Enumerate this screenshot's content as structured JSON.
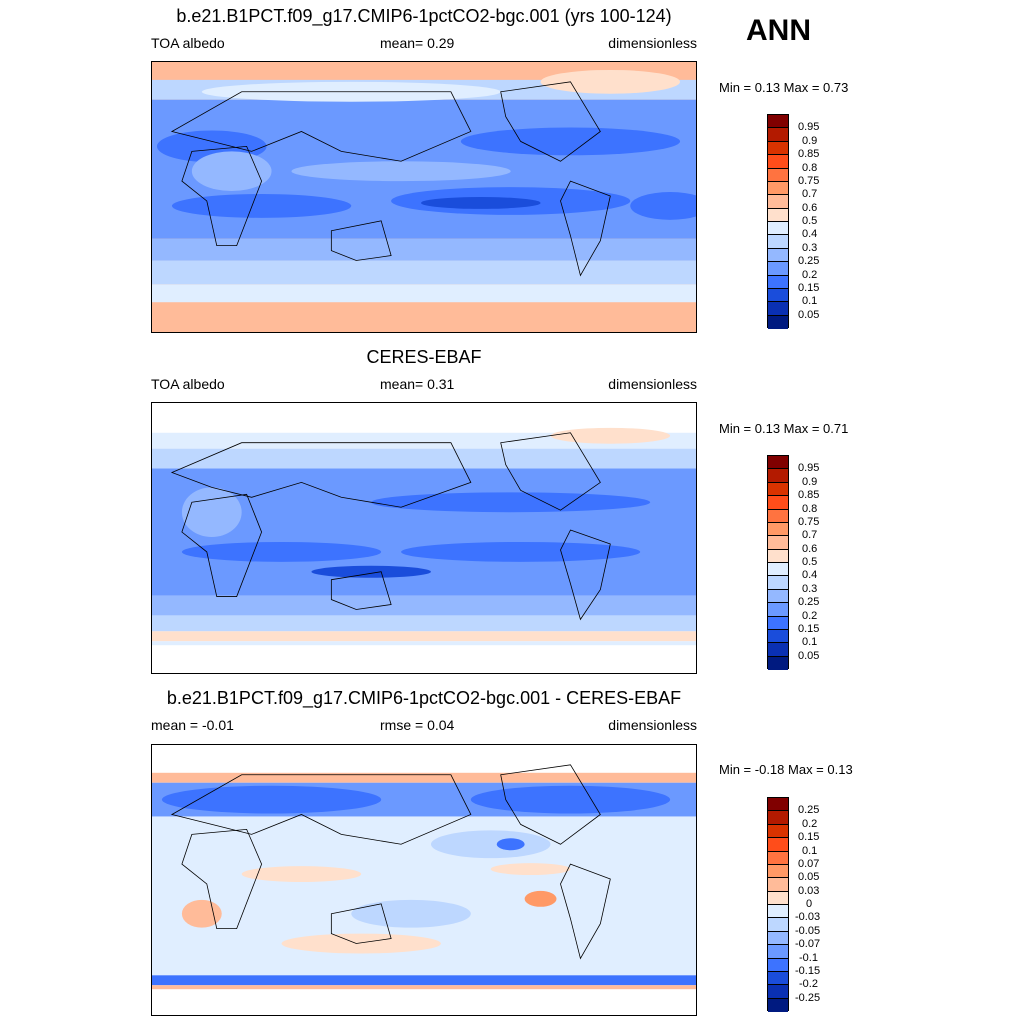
{
  "season": "ANN",
  "panels": [
    {
      "title": "b.e21.B1PCT.f09_g17.CMIP6-1pctCO2-bgc.001 (yrs 100-124)",
      "left_text": "TOA albedo",
      "center_text": "mean=   0.29",
      "right_text": "dimensionless",
      "minmax": "Min =   0.13 Max =   0.73",
      "colorbar": {
        "labels": [
          "0.95",
          "0.9",
          "0.85",
          "0.8",
          "0.75",
          "0.7",
          "0.6",
          "0.5",
          "0.4",
          "0.3",
          "0.25",
          "0.2",
          "0.15",
          "0.1",
          "0.05"
        ],
        "colors": [
          "#800000",
          "#b31a00",
          "#d93300",
          "#ff4d1a",
          "#ff7340",
          "#ff9966",
          "#ffbb99",
          "#ffe0cc",
          "#e0eeff",
          "#bdd7ff",
          "#94b8ff",
          "#6b99ff",
          "#3d73ff",
          "#1a4ddb",
          "#0a30b3",
          "#001a80"
        ]
      }
    },
    {
      "title": "CERES-EBAF",
      "left_text": "TOA albedo",
      "center_text": "mean=   0.31",
      "right_text": "dimensionless",
      "minmax": "Min =   0.13 Max =   0.71",
      "colorbar": {
        "labels": [
          "0.95",
          "0.9",
          "0.85",
          "0.8",
          "0.75",
          "0.7",
          "0.6",
          "0.5",
          "0.4",
          "0.3",
          "0.25",
          "0.2",
          "0.15",
          "0.1",
          "0.05"
        ],
        "colors": [
          "#800000",
          "#b31a00",
          "#d93300",
          "#ff4d1a",
          "#ff7340",
          "#ff9966",
          "#ffbb99",
          "#ffe0cc",
          "#e0eeff",
          "#bdd7ff",
          "#94b8ff",
          "#6b99ff",
          "#3d73ff",
          "#1a4ddb",
          "#0a30b3",
          "#001a80"
        ]
      }
    },
    {
      "title": "b.e21.B1PCT.f09_g17.CMIP6-1pctCO2-bgc.001 - CERES-EBAF",
      "left_text": "mean =  -0.01",
      "center_text": "rmse =   0.04",
      "right_text": "dimensionless",
      "minmax": "Min =  -0.18 Max =   0.13",
      "colorbar": {
        "labels": [
          "0.25",
          "0.2",
          "0.15",
          "0.1",
          "0.07",
          "0.05",
          "0.03",
          "0",
          "-0.03",
          "-0.05",
          "-0.07",
          "-0.1",
          "-0.15",
          "-0.2",
          "-0.25"
        ],
        "colors": [
          "#800000",
          "#b31a00",
          "#d93300",
          "#ff4d1a",
          "#ff7340",
          "#ff9966",
          "#ffbb99",
          "#ffe0cc",
          "#e0eeff",
          "#bdd7ff",
          "#94b8ff",
          "#6b99ff",
          "#3d73ff",
          "#1a4ddb",
          "#0a30b3",
          "#001a80"
        ]
      }
    }
  ]
}
